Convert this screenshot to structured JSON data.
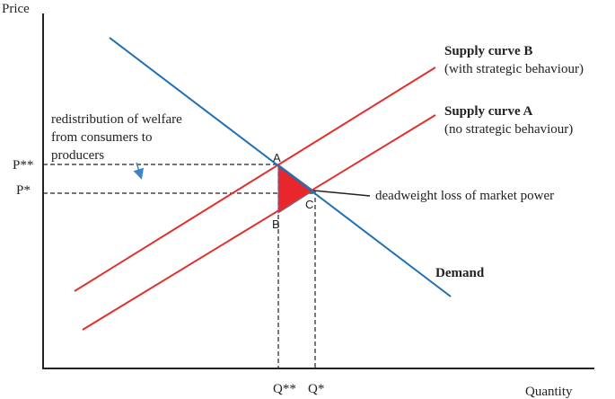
{
  "axes": {
    "y_label": "Price",
    "x_label": "Quantity"
  },
  "curves": {
    "supply_b": {
      "name": "Supply curve B",
      "note": "(with strategic behaviour)"
    },
    "supply_a": {
      "name": "Supply curve A",
      "note": "(no strategic behaviour)"
    },
    "demand": {
      "name": "Demand"
    }
  },
  "points": {
    "a": "A",
    "b": "B",
    "c": "C"
  },
  "prices": {
    "p_star_star": "P**",
    "p_star": "P*"
  },
  "quantities": {
    "q_star_star": "Q**",
    "q_star": "Q*"
  },
  "annotations": {
    "redistribution": [
      "redistribution of welfare",
      "from consumers to",
      "producers"
    ],
    "deadweight": "deadweight loss of market power"
  }
}
